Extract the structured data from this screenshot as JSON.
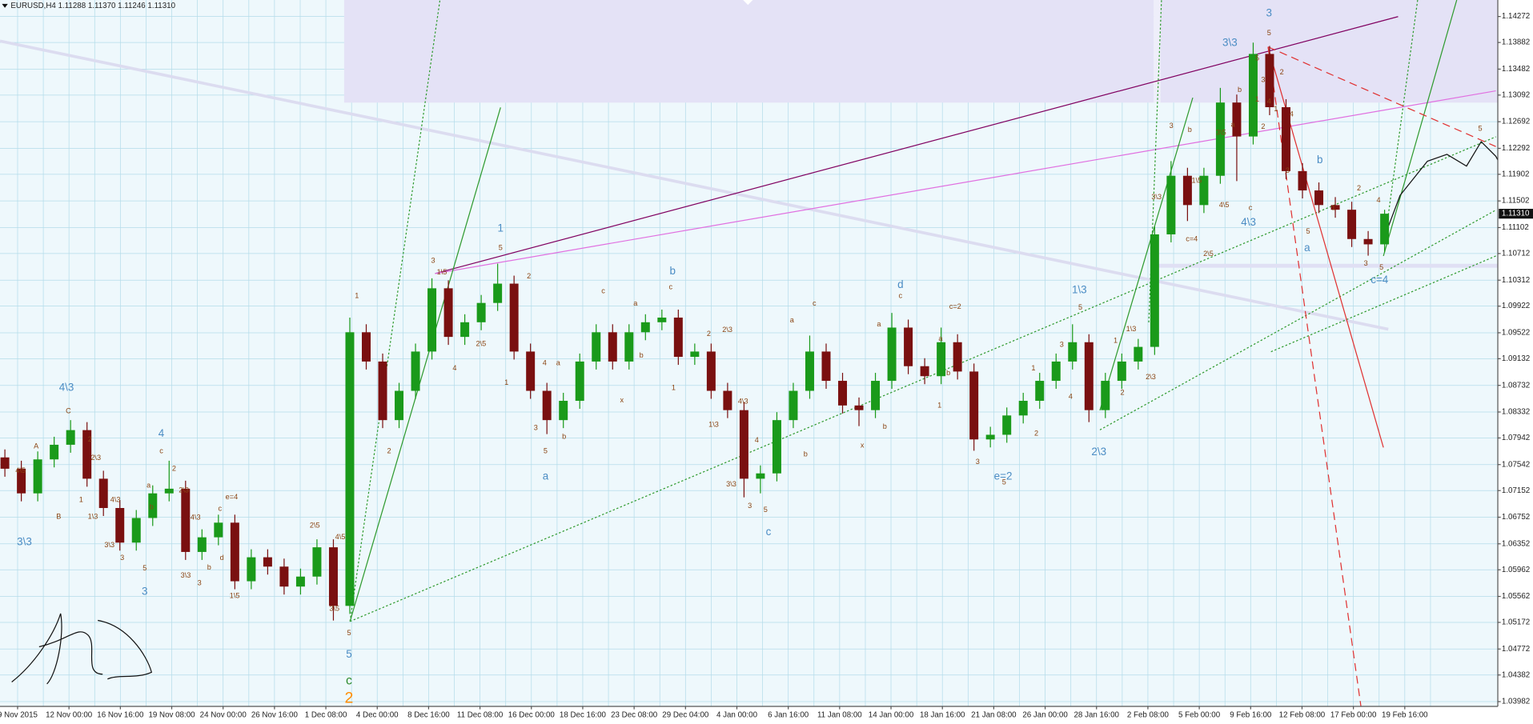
{
  "chart_data": {
    "type": "candlestick",
    "header": "EURUSD,H4  1.11288 1.11370 1.11246 1.11310",
    "up_color": "#1a9a1a",
    "down_color": "#7a1010",
    "grid": true,
    "ylim": [
      1.0391,
      1.1452
    ],
    "yticks": [
      1.14272,
      1.13882,
      1.13482,
      1.13092,
      1.12692,
      1.12292,
      1.11902,
      1.11502,
      1.11102,
      1.10712,
      1.10312,
      1.09922,
      1.09522,
      1.09132,
      1.08732,
      1.08332,
      1.07942,
      1.07542,
      1.07152,
      1.06752,
      1.06352,
      1.05962,
      1.05562,
      1.05172,
      1.04772,
      1.04382,
      1.03982
    ],
    "last_price": {
      "value": 1.1131,
      "label": "1.11310"
    },
    "time_labels": [
      "9 Nov 2015",
      "12 Nov 00:00",
      "16 Nov 16:00",
      "19 Nov 08:00",
      "24 Nov 00:00",
      "26 Nov 16:00",
      "1 Dec 08:00",
      "4 Dec 00:00",
      "8 Dec 16:00",
      "11 Dec 08:00",
      "16 Dec 00:00",
      "18 Dec 16:00",
      "23 Dec 08:00",
      "29 Dec 04:00",
      "4 Jan 00:00",
      "6 Jan 16:00",
      "11 Jan 08:00",
      "14 Jan 00:00",
      "18 Jan 16:00",
      "21 Jan 08:00",
      "26 Jan 00:00",
      "28 Jan 16:00",
      "2 Feb 08:00",
      "5 Feb 00:00",
      "9 Feb 16:00",
      "12 Feb 08:00",
      "17 Feb 00:00",
      "19 Feb 16:00"
    ],
    "candles": [
      [
        1.0765,
        1.0777,
        1.0736,
        1.0748
      ],
      [
        1.0748,
        1.076,
        1.0699,
        1.0711
      ],
      [
        1.0711,
        1.0774,
        1.0699,
        1.0762
      ],
      [
        1.0762,
        1.0796,
        1.075,
        1.0784
      ],
      [
        1.0784,
        1.0821,
        1.0772,
        1.0806
      ],
      [
        1.0806,
        1.0818,
        1.0721,
        1.0733
      ],
      [
        1.0733,
        1.0745,
        1.0677,
        1.0689
      ],
      [
        1.0689,
        1.0701,
        1.0625,
        1.0637
      ],
      [
        1.0637,
        1.0686,
        1.0625,
        1.0674
      ],
      [
        1.0674,
        1.0723,
        1.0662,
        1.0711
      ],
      [
        1.0711,
        1.076,
        1.0699,
        1.0718
      ],
      [
        1.0718,
        1.073,
        1.0611,
        1.0623
      ],
      [
        1.0623,
        1.0657,
        1.0611,
        1.0645
      ],
      [
        1.0645,
        1.0679,
        1.0633,
        1.0667
      ],
      [
        1.0667,
        1.0679,
        1.0567,
        1.0579
      ],
      [
        1.0579,
        1.0627,
        1.0567,
        1.0615
      ],
      [
        1.0615,
        1.0627,
        1.0589,
        1.0601
      ],
      [
        1.0601,
        1.0613,
        1.0559,
        1.0571
      ],
      [
        1.0571,
        1.0598,
        1.0559,
        1.0586
      ],
      [
        1.0586,
        1.0642,
        1.0574,
        1.063
      ],
      [
        1.063,
        1.0642,
        1.052,
        1.0542
      ],
      [
        1.0542,
        1.0975,
        1.053,
        1.0953
      ],
      [
        1.0953,
        1.0965,
        1.0897,
        1.0909
      ],
      [
        1.0909,
        1.0921,
        1.0809,
        1.0821
      ],
      [
        1.0821,
        1.0877,
        1.0809,
        1.0865
      ],
      [
        1.0865,
        1.0936,
        1.0853,
        1.0924
      ],
      [
        1.0924,
        1.1034,
        1.0912,
        1.1019
      ],
      [
        1.1019,
        1.1031,
        1.0934,
        1.0946
      ],
      [
        1.0946,
        1.098,
        1.0934,
        1.0968
      ],
      [
        1.0968,
        1.1009,
        1.0956,
        1.0997
      ],
      [
        1.0997,
        1.1056,
        1.0985,
        1.1026
      ],
      [
        1.1026,
        1.1038,
        1.0912,
        1.0924
      ],
      [
        1.0924,
        1.0936,
        1.0853,
        1.0865
      ],
      [
        1.0865,
        1.0877,
        1.08,
        1.0821
      ],
      [
        1.0821,
        1.0862,
        1.0809,
        1.085
      ],
      [
        1.085,
        1.0921,
        1.0838,
        1.0909
      ],
      [
        1.0909,
        1.0965,
        1.0897,
        1.0953
      ],
      [
        1.0953,
        1.0965,
        1.0897,
        1.0909
      ],
      [
        1.0909,
        1.0965,
        1.0897,
        1.0953
      ],
      [
        1.0953,
        1.098,
        1.0941,
        1.0968
      ],
      [
        1.0968,
        1.0987,
        1.0956,
        1.0975
      ],
      [
        1.0975,
        1.0987,
        1.0904,
        1.0916
      ],
      [
        1.0916,
        1.0936,
        1.0904,
        1.0924
      ],
      [
        1.0924,
        1.0936,
        1.0853,
        1.0865
      ],
      [
        1.0865,
        1.0877,
        1.0824,
        1.0836
      ],
      [
        1.0836,
        1.0848,
        1.0705,
        1.0733
      ],
      [
        1.0733,
        1.0753,
        1.0711,
        1.0741
      ],
      [
        1.0741,
        1.0833,
        1.0729,
        1.0821
      ],
      [
        1.0821,
        1.0877,
        1.0809,
        1.0865
      ],
      [
        1.0865,
        1.0948,
        1.0853,
        1.0924
      ],
      [
        1.0924,
        1.0936,
        1.0868,
        1.088
      ],
      [
        1.088,
        1.0892,
        1.0831,
        1.0843
      ],
      [
        1.0843,
        1.0855,
        1.0812,
        1.0836
      ],
      [
        1.0836,
        1.0892,
        1.0824,
        1.088
      ],
      [
        1.088,
        1.0982,
        1.0868,
        1.096
      ],
      [
        1.096,
        1.0972,
        1.089,
        1.0902
      ],
      [
        1.0902,
        1.0914,
        1.0875,
        1.0887
      ],
      [
        1.0887,
        1.096,
        1.0875,
        1.0938
      ],
      [
        1.0938,
        1.095,
        1.0882,
        1.0894
      ],
      [
        1.0894,
        1.0906,
        1.0775,
        1.0792
      ],
      [
        1.0792,
        1.0811,
        1.078,
        1.0799
      ],
      [
        1.0799,
        1.084,
        1.0787,
        1.0828
      ],
      [
        1.0828,
        1.0862,
        1.0816,
        1.085
      ],
      [
        1.085,
        1.0892,
        1.0838,
        1.088
      ],
      [
        1.088,
        1.0921,
        1.0868,
        1.0909
      ],
      [
        1.0909,
        1.0965,
        1.0897,
        1.0938
      ],
      [
        1.0938,
        1.095,
        1.0818,
        1.0836
      ],
      [
        1.0836,
        1.0892,
        1.0824,
        1.088
      ],
      [
        1.088,
        1.0921,
        1.0868,
        1.0909
      ],
      [
        1.0909,
        1.0943,
        1.0897,
        1.0931
      ],
      [
        1.0931,
        1.1112,
        1.0919,
        1.11
      ],
      [
        1.11,
        1.121,
        1.1088,
        1.1188
      ],
      [
        1.1188,
        1.12,
        1.112,
        1.1144
      ],
      [
        1.1144,
        1.12,
        1.1132,
        1.1188
      ],
      [
        1.1188,
        1.132,
        1.1176,
        1.1298
      ],
      [
        1.1298,
        1.131,
        1.118,
        1.1247
      ],
      [
        1.1247,
        1.1388,
        1.1235,
        1.1371
      ],
      [
        1.1371,
        1.1383,
        1.1279,
        1.1291
      ],
      [
        1.1291,
        1.1303,
        1.1183,
        1.1195
      ],
      [
        1.1195,
        1.1207,
        1.1154,
        1.1166
      ],
      [
        1.1166,
        1.1178,
        1.1132,
        1.1144
      ],
      [
        1.1144,
        1.1156,
        1.1125,
        1.1137
      ],
      [
        1.1137,
        1.1149,
        1.1081,
        1.1093
      ],
      [
        1.1093,
        1.1105,
        1.1068,
        1.1085
      ],
      [
        1.1085,
        1.1137,
        1.1073,
        1.1131
      ]
    ],
    "major_color": "#4a8cc4",
    "minor_color": "#8b4513",
    "major_labels": [
      "3\\3",
      "4\\3",
      "4",
      "3",
      "5",
      "1",
      "b",
      "a",
      "c",
      "d",
      "e=2",
      "1\\3",
      "2\\3",
      "3\\3",
      "3",
      "4\\3",
      "a",
      "b",
      "c=4"
    ],
    "minor_labels": [
      "4\\5",
      "A",
      "B",
      "C",
      "2",
      "2\\3",
      "1",
      "1\\3",
      "4\\3",
      "3\\3",
      "3",
      "5",
      "a",
      "c",
      "2",
      "2\\3",
      "b",
      "4\\3",
      "3\\3",
      "3",
      "b",
      "d",
      "e=4",
      "c",
      "1\\5",
      "2\\5",
      "4\\5",
      "3\\5",
      "5",
      "1",
      "2",
      "3",
      "1\\5",
      "4",
      "2\\5",
      "5",
      "2",
      "1",
      "3",
      "5",
      "4",
      "a",
      "b",
      "c",
      "a",
      "c",
      "x",
      "b",
      "1",
      "2",
      "2\\3",
      "1\\3",
      "4\\3",
      "3\\3",
      "4",
      "3",
      "5",
      "a",
      "c",
      "b",
      "x",
      "a",
      "b",
      "c",
      "c=2",
      "a",
      "b",
      "1",
      "3",
      "5",
      "1",
      "2",
      "3",
      "4",
      "5",
      "1",
      "1\\3",
      "2",
      "2\\3",
      "3\\3",
      "3",
      "b",
      "1\\5",
      "c=4",
      "2\\5",
      "4\\5",
      "3\\5",
      "a",
      "b",
      "c",
      "5",
      "5",
      "1",
      "3",
      "4",
      "2",
      "2",
      "1",
      "4",
      "3",
      "5",
      "1",
      "2",
      "3",
      "4",
      "5",
      "5"
    ],
    "degree_labels": [
      {
        "text": "c",
        "color": "#2e8b2e"
      },
      {
        "text": "2",
        "color": "#ff8c00"
      }
    ]
  }
}
